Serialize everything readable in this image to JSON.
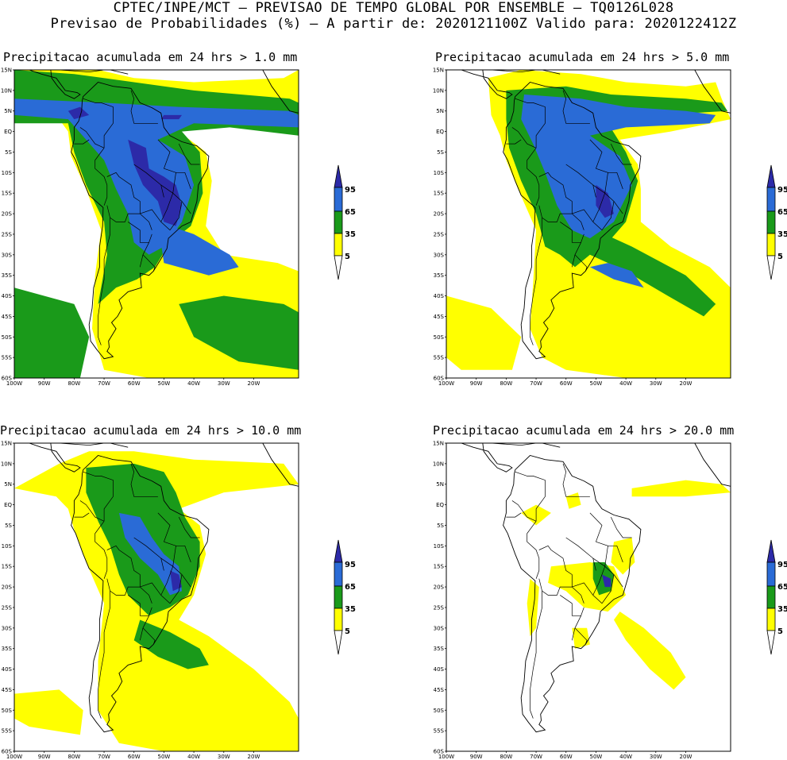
{
  "header": {
    "line1": "CPTEC/INPE/MCT – PREVISAO DE TEMPO GLOBAL POR ENSEMBLE – TQ0126L028",
    "line2": "Previsao de Probabilidades (%) –  A partir de: 2020121100Z  Valido para: 2020122412Z"
  },
  "colors": {
    "white": "#ffffff",
    "yellow": "#ffff00",
    "green": "#1a9a1a",
    "blue": "#2a6bd6",
    "navy": "#2c2aa8"
  },
  "lat_ticks": [
    "15N",
    "10N",
    "5N",
    "EQ",
    "5S",
    "10S",
    "15S",
    "20S",
    "25S",
    "30S",
    "35S",
    "40S",
    "45S",
    "50S",
    "55S",
    "60S"
  ],
  "lon_ticks": [
    "100W",
    "90W",
    "80W",
    "70W",
    "60W",
    "50W",
    "40W",
    "30W",
    "20W"
  ],
  "colorbar": {
    "labels": [
      "95",
      "65",
      "35",
      "5"
    ]
  },
  "panels": [
    {
      "id": "p1",
      "title": "Precipitacao acumulada em 24 hrs > 1.0 mm",
      "threshold_mm": 1.0
    },
    {
      "id": "p2",
      "title": "Precipitacao acumulada em 24 hrs > 5.0 mm",
      "threshold_mm": 5.0
    },
    {
      "id": "p3",
      "title": "Precipitacao acumulada em 24 hrs > 10.0 mm",
      "threshold_mm": 10.0
    },
    {
      "id": "p4",
      "title": "Precipitacao acumulada em 24 hrs > 20.0 mm",
      "threshold_mm": 20.0
    }
  ]
}
